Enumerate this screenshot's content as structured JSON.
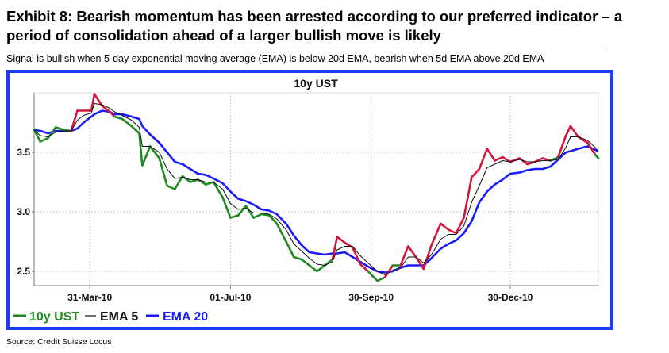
{
  "header": {
    "title": "Exhibit 8: Bearish momentum has been arrested according to our preferred indicator – a period of consolidation ahead of a larger bullish move is likely",
    "subtitle": "Signal is bullish when 5-day exponential moving average (EMA) is below 20d EMA, bearish when 5d EMA above 20d EMA"
  },
  "footer": {
    "source": "Source: Credit Suisse Locus"
  },
  "colors": {
    "bullish": "#1f8a1f",
    "bearish": "#d4163c",
    "ema5": "#111111",
    "ema20": "#1a1aff",
    "frame": "#1e3cf5"
  },
  "chart_data": {
    "type": "line",
    "title": "10y UST",
    "xlabel": "",
    "ylabel": "",
    "start_date": "2010-02-23",
    "x_unit": "days since start_date",
    "xlim": [
      0,
      365
    ],
    "ylim": [
      2.38,
      4.0
    ],
    "grid": true,
    "legend_position": "bottom-left",
    "y_ticks": [
      {
        "value": 2.5,
        "label": "2.5"
      },
      {
        "value": 3.0,
        "label": "3.0"
      },
      {
        "value": 3.5,
        "label": "3.5"
      }
    ],
    "x_ticks": [
      {
        "value": 36,
        "label": "31-Mar-10"
      },
      {
        "value": 127,
        "label": "01-Jul-10"
      },
      {
        "value": 218,
        "label": "30-Sep-10"
      },
      {
        "value": 308,
        "label": "30-Dec-10"
      }
    ],
    "x": [
      0,
      4,
      9,
      14,
      19,
      24,
      28,
      32,
      37,
      39,
      44,
      49,
      52,
      57,
      63,
      68,
      70,
      75,
      81,
      86,
      91,
      96,
      101,
      106,
      111,
      116,
      122,
      127,
      132,
      137,
      142,
      147,
      152,
      157,
      163,
      168,
      173,
      178,
      183,
      188,
      193,
      196,
      201,
      206,
      211,
      216,
      222,
      227,
      232,
      237,
      242,
      247,
      252,
      257,
      263,
      268,
      273,
      278,
      283,
      288,
      293,
      298,
      303,
      308,
      314,
      319,
      324,
      329,
      334,
      339,
      344,
      347,
      352,
      358,
      363,
      365
    ],
    "series": [
      {
        "name": "10y UST",
        "values": [
          3.69,
          3.59,
          3.62,
          3.71,
          3.69,
          3.68,
          3.85,
          3.85,
          3.85,
          3.99,
          3.89,
          3.84,
          3.8,
          3.78,
          3.72,
          3.66,
          3.39,
          3.55,
          3.45,
          3.22,
          3.19,
          3.3,
          3.25,
          3.27,
          3.23,
          3.25,
          3.12,
          2.95,
          2.97,
          3.05,
          2.95,
          2.98,
          2.97,
          2.9,
          2.75,
          2.62,
          2.6,
          2.55,
          2.5,
          2.55,
          2.6,
          2.79,
          2.74,
          2.7,
          2.56,
          2.5,
          2.42,
          2.45,
          2.55,
          2.55,
          2.71,
          2.62,
          2.52,
          2.72,
          2.9,
          2.85,
          2.82,
          2.95,
          3.29,
          3.36,
          3.53,
          3.43,
          3.46,
          3.42,
          3.45,
          3.4,
          3.42,
          3.45,
          3.43,
          3.46,
          3.64,
          3.72,
          3.63,
          3.58,
          3.48,
          3.45
        ]
      },
      {
        "name": "EMA 5",
        "values": [
          3.69,
          3.64,
          3.63,
          3.67,
          3.68,
          3.68,
          3.77,
          3.81,
          3.83,
          3.91,
          3.9,
          3.87,
          3.84,
          3.81,
          3.77,
          3.71,
          3.55,
          3.55,
          3.5,
          3.36,
          3.28,
          3.29,
          3.27,
          3.27,
          3.25,
          3.25,
          3.19,
          3.07,
          3.02,
          3.03,
          2.99,
          2.99,
          2.98,
          2.94,
          2.85,
          2.73,
          2.67,
          2.61,
          2.56,
          2.55,
          2.58,
          2.68,
          2.71,
          2.71,
          2.63,
          2.57,
          2.5,
          2.47,
          2.51,
          2.53,
          2.62,
          2.62,
          2.57,
          2.64,
          2.77,
          2.81,
          2.81,
          2.88,
          3.08,
          3.22,
          3.37,
          3.4,
          3.43,
          3.42,
          3.44,
          3.42,
          3.42,
          3.43,
          3.43,
          3.44,
          3.54,
          3.63,
          3.63,
          3.6,
          3.54,
          3.5
        ]
      },
      {
        "name": "EMA 20",
        "values": [
          3.69,
          3.68,
          3.66,
          3.68,
          3.68,
          3.68,
          3.7,
          3.75,
          3.8,
          3.82,
          3.85,
          3.84,
          3.82,
          3.82,
          3.8,
          3.78,
          3.72,
          3.65,
          3.58,
          3.5,
          3.42,
          3.4,
          3.36,
          3.32,
          3.31,
          3.28,
          3.24,
          3.17,
          3.11,
          3.09,
          3.06,
          3.02,
          3.01,
          2.98,
          2.9,
          2.8,
          2.72,
          2.66,
          2.65,
          2.64,
          2.65,
          2.65,
          2.66,
          2.62,
          2.58,
          2.54,
          2.5,
          2.49,
          2.5,
          2.53,
          2.55,
          2.55,
          2.55,
          2.61,
          2.69,
          2.73,
          2.76,
          2.82,
          2.92,
          3.08,
          3.17,
          3.23,
          3.27,
          3.32,
          3.33,
          3.35,
          3.36,
          3.36,
          3.38,
          3.44,
          3.5,
          3.51,
          3.53,
          3.55,
          3.52,
          3.51
        ]
      }
    ],
    "legend": [
      "10y UST",
      "EMA 5",
      "EMA 20"
    ]
  }
}
